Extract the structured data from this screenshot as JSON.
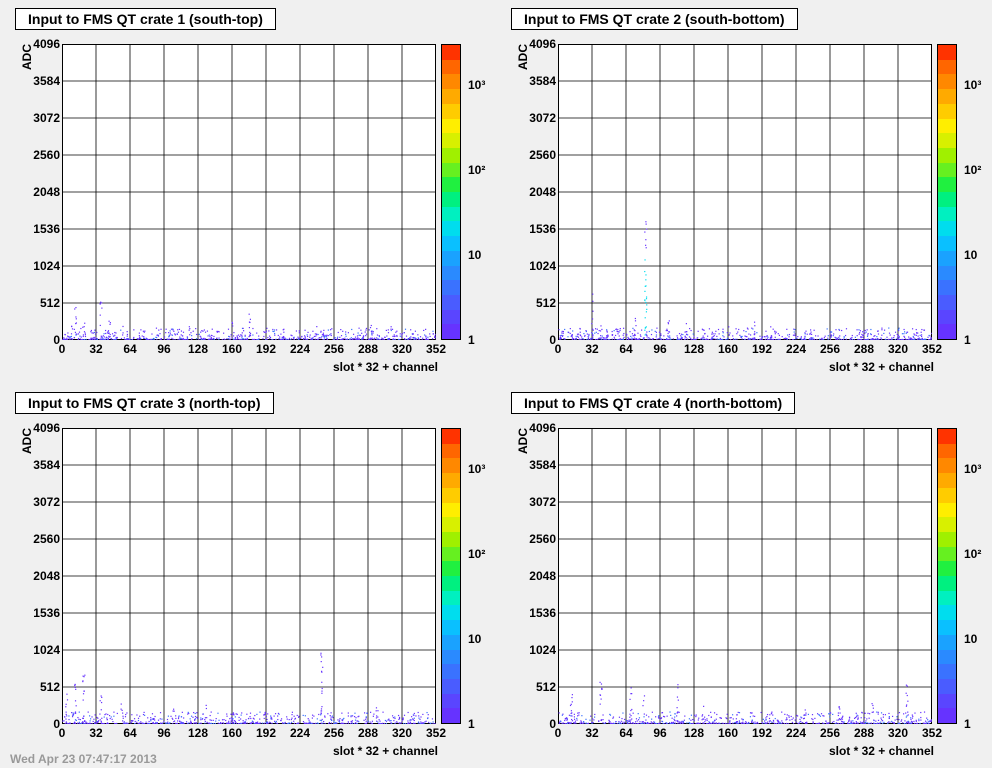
{
  "chart_data": [
    {
      "type": "heatmap",
      "title": "Input to FMS QT crate 1 (south-top)",
      "xlabel": "slot * 32 + channel",
      "ylabel": "ADC",
      "xlim": [
        0,
        352
      ],
      "ylim": [
        0,
        4096
      ],
      "zscale": "log",
      "zlim": [
        1,
        3000
      ],
      "grid": true,
      "hot_points": [
        [
          4,
          120
        ],
        [
          8,
          250
        ],
        [
          12,
          450
        ],
        [
          20,
          300
        ],
        [
          28,
          200
        ],
        [
          36,
          600
        ],
        [
          44,
          350
        ],
        [
          56,
          200
        ],
        [
          72,
          180
        ],
        [
          92,
          150
        ],
        [
          120,
          200
        ],
        [
          140,
          180
        ],
        [
          160,
          250
        ],
        [
          176,
          450
        ],
        [
          208,
          150
        ],
        [
          240,
          200
        ],
        [
          290,
          250
        ],
        [
          310,
          180
        ]
      ]
    },
    {
      "type": "heatmap",
      "title": "Input to FMS QT crate 2 (south-bottom)",
      "xlabel": "slot * 32 + channel",
      "ylabel": "ADC",
      "xlim": [
        0,
        352
      ],
      "ylim": [
        0,
        4096
      ],
      "zscale": "log",
      "zlim": [
        1,
        3000
      ],
      "grid": true,
      "hot_points": [
        [
          4,
          150
        ],
        [
          12,
          250
        ],
        [
          32,
          650
        ],
        [
          40,
          300
        ],
        [
          56,
          200
        ],
        [
          72,
          350
        ],
        [
          82,
          1700
        ],
        [
          104,
          300
        ],
        [
          120,
          250
        ],
        [
          136,
          200
        ],
        [
          160,
          180
        ],
        [
          184,
          250
        ],
        [
          200,
          200
        ],
        [
          232,
          180
        ],
        [
          256,
          150
        ],
        [
          288,
          150
        ],
        [
          304,
          200
        ]
      ]
    },
    {
      "type": "heatmap",
      "title": "Input to FMS QT crate 3 (north-top)",
      "xlabel": "slot * 32 + channel",
      "ylabel": "ADC",
      "xlim": [
        0,
        352
      ],
      "ylim": [
        0,
        4096
      ],
      "zscale": "log",
      "zlim": [
        1,
        3000
      ],
      "grid": true,
      "hot_points": [
        [
          4,
          450
        ],
        [
          12,
          600
        ],
        [
          20,
          700
        ],
        [
          36,
          450
        ],
        [
          56,
          300
        ],
        [
          72,
          200
        ],
        [
          104,
          250
        ],
        [
          136,
          300
        ],
        [
          160,
          200
        ],
        [
          200,
          200
        ],
        [
          244,
          1000
        ],
        [
          272,
          250
        ],
        [
          296,
          300
        ],
        [
          320,
          150
        ]
      ]
    },
    {
      "type": "heatmap",
      "title": "Input to FMS QT crate 4 (north-bottom)",
      "xlabel": "slot * 32 + channel",
      "ylabel": "ADC",
      "xlim": [
        0,
        352
      ],
      "ylim": [
        0,
        4096
      ],
      "zscale": "log",
      "zlim": [
        1,
        3000
      ],
      "grid": true,
      "hot_points": [
        [
          12,
          500
        ],
        [
          40,
          700
        ],
        [
          68,
          500
        ],
        [
          80,
          400
        ],
        [
          112,
          550
        ],
        [
          136,
          300
        ],
        [
          168,
          200
        ],
        [
          200,
          150
        ],
        [
          232,
          250
        ],
        [
          264,
          300
        ],
        [
          296,
          350
        ],
        [
          328,
          550
        ]
      ]
    }
  ],
  "yticks": [
    "0",
    "512",
    "1024",
    "1536",
    "2048",
    "2560",
    "3072",
    "3584",
    "4096"
  ],
  "xticks": [
    "0",
    "32",
    "64",
    "96",
    "128",
    "160",
    "192",
    "224",
    "256",
    "288",
    "320",
    "352"
  ],
  "zticks": [
    {
      "value": 1,
      "label": "1"
    },
    {
      "value": 10,
      "label": "10"
    },
    {
      "value": 100,
      "label": "10²"
    },
    {
      "value": 1000,
      "label": "10³"
    }
  ],
  "palette": [
    "#6633ff",
    "#5a45ff",
    "#4a5cff",
    "#3a72ff",
    "#2a8aff",
    "#1aa2ff",
    "#0ac0ff",
    "#00ddee",
    "#00f0c0",
    "#00f080",
    "#20f040",
    "#66f020",
    "#a0f000",
    "#d8f000",
    "#ffee00",
    "#ffcc00",
    "#ffaa00",
    "#ff8800",
    "#ff6600",
    "#ff3300"
  ],
  "footer": "Wed Apr 23 07:47:17 2013"
}
